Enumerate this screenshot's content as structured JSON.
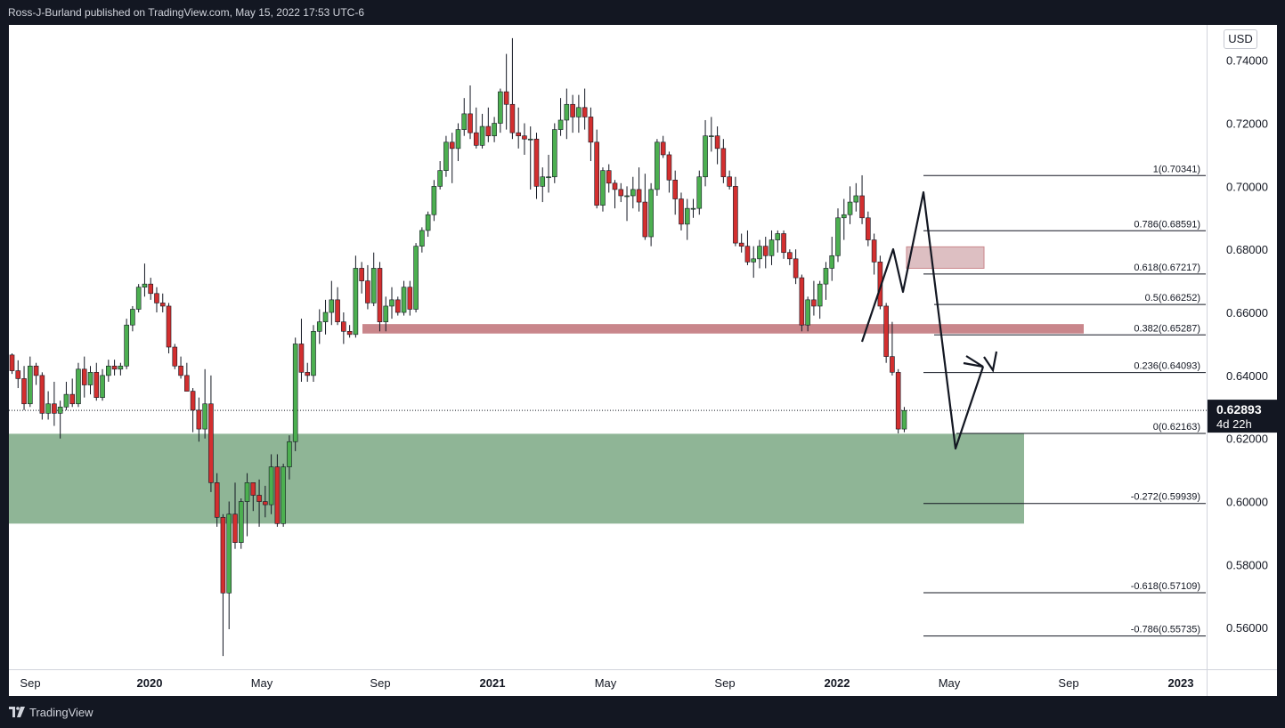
{
  "header": {
    "publish_note": "Ross-J-Burland published on TradingView.com, May 15, 2022 17:53 UTC-6"
  },
  "footer": {
    "brand": "TradingView",
    "logo_icon": "tradingview-logo-icon"
  },
  "chart_data": {
    "type": "candlestick",
    "currency": "USD",
    "y_range": [
      0.5468,
      0.7512
    ],
    "y_ticks": [
      "0.74000",
      "0.72000",
      "0.70000",
      "0.68000",
      "0.66000",
      "0.64000",
      "0.62000",
      "0.60000",
      "0.58000",
      "0.56000"
    ],
    "x_ticks": [
      "Sep",
      "2020",
      "May",
      "Sep",
      "2021",
      "May",
      "Sep",
      "2022",
      "May",
      "Sep",
      "2023"
    ],
    "colors": {
      "up": "#26a69a",
      "down": "#ef5350",
      "up_fill": "#4caf50",
      "down_fill": "#d32f2f",
      "support_zone": "#8fb596",
      "resistance_zone": "#c9868b"
    },
    "last_price": {
      "value": "0.62893",
      "countdown": "4d 22h"
    },
    "candles": [
      {
        "o": 0.6465,
        "h": 0.647,
        "l": 0.6405,
        "c": 0.6415
      },
      {
        "o": 0.6415,
        "h": 0.6448,
        "l": 0.636,
        "c": 0.639
      },
      {
        "o": 0.639,
        "h": 0.643,
        "l": 0.629,
        "c": 0.631
      },
      {
        "o": 0.631,
        "h": 0.646,
        "l": 0.63,
        "c": 0.643
      },
      {
        "o": 0.643,
        "h": 0.644,
        "l": 0.637,
        "c": 0.64
      },
      {
        "o": 0.64,
        "h": 0.641,
        "l": 0.626,
        "c": 0.628
      },
      {
        "o": 0.628,
        "h": 0.635,
        "l": 0.626,
        "c": 0.631
      },
      {
        "o": 0.631,
        "h": 0.638,
        "l": 0.624,
        "c": 0.628
      },
      {
        "o": 0.628,
        "h": 0.632,
        "l": 0.62,
        "c": 0.63
      },
      {
        "o": 0.63,
        "h": 0.638,
        "l": 0.629,
        "c": 0.634
      },
      {
        "o": 0.634,
        "h": 0.639,
        "l": 0.63,
        "c": 0.631
      },
      {
        "o": 0.631,
        "h": 0.644,
        "l": 0.63,
        "c": 0.642
      },
      {
        "o": 0.642,
        "h": 0.646,
        "l": 0.633,
        "c": 0.637
      },
      {
        "o": 0.637,
        "h": 0.643,
        "l": 0.634,
        "c": 0.641
      },
      {
        "o": 0.641,
        "h": 0.644,
        "l": 0.632,
        "c": 0.633
      },
      {
        "o": 0.633,
        "h": 0.642,
        "l": 0.632,
        "c": 0.64
      },
      {
        "o": 0.64,
        "h": 0.645,
        "l": 0.638,
        "c": 0.643
      },
      {
        "o": 0.643,
        "h": 0.645,
        "l": 0.64,
        "c": 0.642
      },
      {
        "o": 0.642,
        "h": 0.644,
        "l": 0.64,
        "c": 0.643
      },
      {
        "o": 0.643,
        "h": 0.658,
        "l": 0.642,
        "c": 0.656
      },
      {
        "o": 0.656,
        "h": 0.662,
        "l": 0.654,
        "c": 0.661
      },
      {
        "o": 0.661,
        "h": 0.669,
        "l": 0.66,
        "c": 0.668
      },
      {
        "o": 0.668,
        "h": 0.6755,
        "l": 0.665,
        "c": 0.669
      },
      {
        "o": 0.669,
        "h": 0.671,
        "l": 0.664,
        "c": 0.666
      },
      {
        "o": 0.666,
        "h": 0.668,
        "l": 0.66,
        "c": 0.663
      },
      {
        "o": 0.663,
        "h": 0.666,
        "l": 0.66,
        "c": 0.662
      },
      {
        "o": 0.662,
        "h": 0.663,
        "l": 0.647,
        "c": 0.649
      },
      {
        "o": 0.649,
        "h": 0.65,
        "l": 0.642,
        "c": 0.643
      },
      {
        "o": 0.643,
        "h": 0.646,
        "l": 0.639,
        "c": 0.64
      },
      {
        "o": 0.64,
        "h": 0.644,
        "l": 0.635,
        "c": 0.635
      },
      {
        "o": 0.635,
        "h": 0.636,
        "l": 0.622,
        "c": 0.629
      },
      {
        "o": 0.629,
        "h": 0.633,
        "l": 0.619,
        "c": 0.623
      },
      {
        "o": 0.623,
        "h": 0.642,
        "l": 0.62,
        "c": 0.631
      },
      {
        "o": 0.631,
        "h": 0.64,
        "l": 0.603,
        "c": 0.606
      },
      {
        "o": 0.606,
        "h": 0.609,
        "l": 0.592,
        "c": 0.595
      },
      {
        "o": 0.595,
        "h": 0.596,
        "l": 0.551,
        "c": 0.571
      },
      {
        "o": 0.571,
        "h": 0.6,
        "l": 0.5595,
        "c": 0.596
      },
      {
        "o": 0.596,
        "h": 0.606,
        "l": 0.585,
        "c": 0.587
      },
      {
        "o": 0.587,
        "h": 0.601,
        "l": 0.585,
        "c": 0.6
      },
      {
        "o": 0.6,
        "h": 0.609,
        "l": 0.589,
        "c": 0.606
      },
      {
        "o": 0.606,
        "h": 0.606,
        "l": 0.597,
        "c": 0.602
      },
      {
        "o": 0.602,
        "h": 0.607,
        "l": 0.592,
        "c": 0.6
      },
      {
        "o": 0.6,
        "h": 0.605,
        "l": 0.595,
        "c": 0.599
      },
      {
        "o": 0.599,
        "h": 0.615,
        "l": 0.596,
        "c": 0.611
      },
      {
        "o": 0.611,
        "h": 0.615,
        "l": 0.592,
        "c": 0.593
      },
      {
        "o": 0.593,
        "h": 0.612,
        "l": 0.592,
        "c": 0.611
      },
      {
        "o": 0.611,
        "h": 0.621,
        "l": 0.607,
        "c": 0.619
      },
      {
        "o": 0.619,
        "h": 0.652,
        "l": 0.616,
        "c": 0.65
      },
      {
        "o": 0.65,
        "h": 0.658,
        "l": 0.638,
        "c": 0.641
      },
      {
        "o": 0.641,
        "h": 0.644,
        "l": 0.638,
        "c": 0.64
      },
      {
        "o": 0.64,
        "h": 0.656,
        "l": 0.638,
        "c": 0.654
      },
      {
        "o": 0.654,
        "h": 0.661,
        "l": 0.65,
        "c": 0.657
      },
      {
        "o": 0.657,
        "h": 0.664,
        "l": 0.653,
        "c": 0.66
      },
      {
        "o": 0.66,
        "h": 0.67,
        "l": 0.656,
        "c": 0.664
      },
      {
        "o": 0.664,
        "h": 0.668,
        "l": 0.656,
        "c": 0.657
      },
      {
        "o": 0.657,
        "h": 0.66,
        "l": 0.65,
        "c": 0.654
      },
      {
        "o": 0.654,
        "h": 0.656,
        "l": 0.652,
        "c": 0.653
      },
      {
        "o": 0.653,
        "h": 0.678,
        "l": 0.652,
        "c": 0.674
      },
      {
        "o": 0.674,
        "h": 0.676,
        "l": 0.666,
        "c": 0.67
      },
      {
        "o": 0.67,
        "h": 0.675,
        "l": 0.661,
        "c": 0.663
      },
      {
        "o": 0.663,
        "h": 0.679,
        "l": 0.662,
        "c": 0.674
      },
      {
        "o": 0.674,
        "h": 0.676,
        "l": 0.654,
        "c": 0.657
      },
      {
        "o": 0.657,
        "h": 0.665,
        "l": 0.654,
        "c": 0.662
      },
      {
        "o": 0.662,
        "h": 0.668,
        "l": 0.658,
        "c": 0.664
      },
      {
        "o": 0.664,
        "h": 0.665,
        "l": 0.659,
        "c": 0.66
      },
      {
        "o": 0.66,
        "h": 0.67,
        "l": 0.659,
        "c": 0.668
      },
      {
        "o": 0.668,
        "h": 0.67,
        "l": 0.659,
        "c": 0.661
      },
      {
        "o": 0.661,
        "h": 0.682,
        "l": 0.66,
        "c": 0.681
      },
      {
        "o": 0.681,
        "h": 0.687,
        "l": 0.679,
        "c": 0.686
      },
      {
        "o": 0.686,
        "h": 0.692,
        "l": 0.684,
        "c": 0.691
      },
      {
        "o": 0.691,
        "h": 0.702,
        "l": 0.689,
        "c": 0.7
      },
      {
        "o": 0.7,
        "h": 0.708,
        "l": 0.699,
        "c": 0.705
      },
      {
        "o": 0.705,
        "h": 0.716,
        "l": 0.703,
        "c": 0.714
      },
      {
        "o": 0.714,
        "h": 0.717,
        "l": 0.701,
        "c": 0.712
      },
      {
        "o": 0.712,
        "h": 0.72,
        "l": 0.708,
        "c": 0.718
      },
      {
        "o": 0.718,
        "h": 0.728,
        "l": 0.716,
        "c": 0.723
      },
      {
        "o": 0.723,
        "h": 0.732,
        "l": 0.715,
        "c": 0.717
      },
      {
        "o": 0.717,
        "h": 0.725,
        "l": 0.712,
        "c": 0.713
      },
      {
        "o": 0.713,
        "h": 0.723,
        "l": 0.712,
        "c": 0.719
      },
      {
        "o": 0.719,
        "h": 0.725,
        "l": 0.714,
        "c": 0.716
      },
      {
        "o": 0.716,
        "h": 0.722,
        "l": 0.714,
        "c": 0.72
      },
      {
        "o": 0.72,
        "h": 0.731,
        "l": 0.717,
        "c": 0.73
      },
      {
        "o": 0.73,
        "h": 0.742,
        "l": 0.718,
        "c": 0.726
      },
      {
        "o": 0.726,
        "h": 0.747,
        "l": 0.715,
        "c": 0.717
      },
      {
        "o": 0.717,
        "h": 0.725,
        "l": 0.712,
        "c": 0.716
      },
      {
        "o": 0.716,
        "h": 0.72,
        "l": 0.71,
        "c": 0.715
      },
      {
        "o": 0.715,
        "h": 0.719,
        "l": 0.699,
        "c": 0.715
      },
      {
        "o": 0.715,
        "h": 0.717,
        "l": 0.696,
        "c": 0.7
      },
      {
        "o": 0.7,
        "h": 0.706,
        "l": 0.695,
        "c": 0.703
      },
      {
        "o": 0.703,
        "h": 0.71,
        "l": 0.698,
        "c": 0.703
      },
      {
        "o": 0.703,
        "h": 0.72,
        "l": 0.701,
        "c": 0.718
      },
      {
        "o": 0.718,
        "h": 0.728,
        "l": 0.716,
        "c": 0.721
      },
      {
        "o": 0.721,
        "h": 0.731,
        "l": 0.715,
        "c": 0.726
      },
      {
        "o": 0.726,
        "h": 0.729,
        "l": 0.717,
        "c": 0.722
      },
      {
        "o": 0.722,
        "h": 0.729,
        "l": 0.717,
        "c": 0.725
      },
      {
        "o": 0.725,
        "h": 0.731,
        "l": 0.718,
        "c": 0.722
      },
      {
        "o": 0.722,
        "h": 0.725,
        "l": 0.708,
        "c": 0.714
      },
      {
        "o": 0.714,
        "h": 0.718,
        "l": 0.693,
        "c": 0.694
      },
      {
        "o": 0.694,
        "h": 0.706,
        "l": 0.692,
        "c": 0.705
      },
      {
        "o": 0.705,
        "h": 0.707,
        "l": 0.698,
        "c": 0.701
      },
      {
        "o": 0.701,
        "h": 0.702,
        "l": 0.693,
        "c": 0.699
      },
      {
        "o": 0.699,
        "h": 0.701,
        "l": 0.695,
        "c": 0.697
      },
      {
        "o": 0.697,
        "h": 0.7,
        "l": 0.689,
        "c": 0.697
      },
      {
        "o": 0.697,
        "h": 0.703,
        "l": 0.693,
        "c": 0.699
      },
      {
        "o": 0.699,
        "h": 0.706,
        "l": 0.692,
        "c": 0.695
      },
      {
        "o": 0.695,
        "h": 0.704,
        "l": 0.683,
        "c": 0.684
      },
      {
        "o": 0.684,
        "h": 0.701,
        "l": 0.681,
        "c": 0.699
      },
      {
        "o": 0.699,
        "h": 0.715,
        "l": 0.697,
        "c": 0.714
      },
      {
        "o": 0.714,
        "h": 0.716,
        "l": 0.709,
        "c": 0.71
      },
      {
        "o": 0.71,
        "h": 0.711,
        "l": 0.698,
        "c": 0.702
      },
      {
        "o": 0.702,
        "h": 0.705,
        "l": 0.691,
        "c": 0.696
      },
      {
        "o": 0.696,
        "h": 0.698,
        "l": 0.686,
        "c": 0.688
      },
      {
        "o": 0.688,
        "h": 0.696,
        "l": 0.683,
        "c": 0.693
      },
      {
        "o": 0.693,
        "h": 0.696,
        "l": 0.69,
        "c": 0.693
      },
      {
        "o": 0.693,
        "h": 0.705,
        "l": 0.691,
        "c": 0.703
      },
      {
        "o": 0.703,
        "h": 0.721,
        "l": 0.7,
        "c": 0.716
      },
      {
        "o": 0.716,
        "h": 0.722,
        "l": 0.711,
        "c": 0.716
      },
      {
        "o": 0.716,
        "h": 0.719,
        "l": 0.707,
        "c": 0.712
      },
      {
        "o": 0.712,
        "h": 0.715,
        "l": 0.701,
        "c": 0.703
      },
      {
        "o": 0.703,
        "h": 0.705,
        "l": 0.699,
        "c": 0.7
      },
      {
        "o": 0.7,
        "h": 0.703,
        "l": 0.681,
        "c": 0.682
      },
      {
        "o": 0.682,
        "h": 0.685,
        "l": 0.679,
        "c": 0.681
      },
      {
        "o": 0.681,
        "h": 0.686,
        "l": 0.675,
        "c": 0.676
      },
      {
        "o": 0.676,
        "h": 0.681,
        "l": 0.671,
        "c": 0.677
      },
      {
        "o": 0.677,
        "h": 0.683,
        "l": 0.674,
        "c": 0.681
      },
      {
        "o": 0.681,
        "h": 0.684,
        "l": 0.674,
        "c": 0.678
      },
      {
        "o": 0.678,
        "h": 0.686,
        "l": 0.675,
        "c": 0.683
      },
      {
        "o": 0.683,
        "h": 0.686,
        "l": 0.679,
        "c": 0.685
      },
      {
        "o": 0.685,
        "h": 0.686,
        "l": 0.677,
        "c": 0.679
      },
      {
        "o": 0.679,
        "h": 0.68,
        "l": 0.675,
        "c": 0.677
      },
      {
        "o": 0.677,
        "h": 0.68,
        "l": 0.669,
        "c": 0.671
      },
      {
        "o": 0.671,
        "h": 0.672,
        "l": 0.654,
        "c": 0.656
      },
      {
        "o": 0.656,
        "h": 0.665,
        "l": 0.654,
        "c": 0.664
      },
      {
        "o": 0.664,
        "h": 0.67,
        "l": 0.659,
        "c": 0.662
      },
      {
        "o": 0.662,
        "h": 0.67,
        "l": 0.658,
        "c": 0.669
      },
      {
        "o": 0.669,
        "h": 0.676,
        "l": 0.664,
        "c": 0.674
      },
      {
        "o": 0.674,
        "h": 0.684,
        "l": 0.67,
        "c": 0.678
      },
      {
        "o": 0.678,
        "h": 0.693,
        "l": 0.676,
        "c": 0.69
      },
      {
        "o": 0.69,
        "h": 0.696,
        "l": 0.683,
        "c": 0.691
      },
      {
        "o": 0.691,
        "h": 0.7,
        "l": 0.688,
        "c": 0.695
      },
      {
        "o": 0.695,
        "h": 0.701,
        "l": 0.692,
        "c": 0.697
      },
      {
        "o": 0.697,
        "h": 0.7035,
        "l": 0.688,
        "c": 0.69
      },
      {
        "o": 0.69,
        "h": 0.692,
        "l": 0.681,
        "c": 0.683
      },
      {
        "o": 0.683,
        "h": 0.685,
        "l": 0.672,
        "c": 0.676
      },
      {
        "o": 0.676,
        "h": 0.678,
        "l": 0.661,
        "c": 0.662
      },
      {
        "o": 0.662,
        "h": 0.663,
        "l": 0.644,
        "c": 0.646
      },
      {
        "o": 0.646,
        "h": 0.657,
        "l": 0.64,
        "c": 0.641
      },
      {
        "o": 0.641,
        "h": 0.642,
        "l": 0.6216,
        "c": 0.623
      },
      {
        "o": 0.623,
        "h": 0.63,
        "l": 0.622,
        "c": 0.6289
      }
    ],
    "fib_levels": [
      {
        "label": "1(0.70341)",
        "value": 0.70341
      },
      {
        "label": "0.786(0.68591)",
        "value": 0.68591
      },
      {
        "label": "0.618(0.67217)",
        "value": 0.67217
      },
      {
        "label": "0.5(0.66252)",
        "value": 0.66252
      },
      {
        "label": "0.382(0.65287)",
        "value": 0.65287
      },
      {
        "label": "0.236(0.64093)",
        "value": 0.64093
      },
      {
        "label": "0(0.62163)",
        "value": 0.62163
      },
      {
        "label": "-0.272(0.59939)",
        "value": 0.59939
      },
      {
        "label": "-0.618(0.57109)",
        "value": 0.57109
      },
      {
        "label": "-0.786(0.55735)",
        "value": 0.55735
      }
    ],
    "zones": [
      {
        "name": "support",
        "top": 0.6215,
        "bottom": 0.593,
        "color": "#8fb596"
      },
      {
        "name": "resistance",
        "top": 0.6563,
        "bottom": 0.6533,
        "color": "#c9868b"
      },
      {
        "name": "supply",
        "top": 0.6808,
        "bottom": 0.674,
        "color": "#ddbfc2"
      }
    ]
  }
}
